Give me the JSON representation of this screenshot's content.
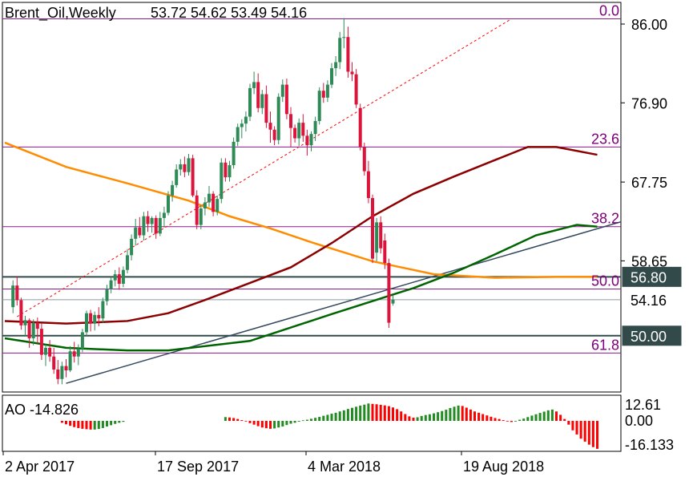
{
  "header": {
    "symbol": "Brent_Oil,Weekly",
    "ohlc": "53.72 54.62 53.49 54.16"
  },
  "indicator": {
    "label": "AO -14.826"
  },
  "chart_data": [
    {
      "type": "candlestick",
      "title": "Brent_Oil,Weekly",
      "y_axis_ticks": [
        "86.00",
        "76.90",
        "67.75",
        "58.65"
      ],
      "ylim": [
        43.5,
        88.5
      ],
      "x_axis_ticks": [
        "2 Apr 2017",
        "17 Sep 2017",
        "4 Mar 2018",
        "19 Aug 2018"
      ],
      "price_labels": [
        {
          "value": 56.8,
          "text": "56.80",
          "bg": "#324a4a"
        },
        {
          "value": 54.16,
          "text": "54.16",
          "bg": "#ffffff"
        },
        {
          "value": 50.0,
          "text": "50.00",
          "bg": "#324a4a"
        }
      ],
      "fib_levels": [
        {
          "label": "0.0",
          "value": 86.6
        },
        {
          "label": "23.6",
          "value": 71.8
        },
        {
          "label": "38.2",
          "value": 62.6
        },
        {
          "label": "50.0",
          "value": 55.4
        },
        {
          "label": "61.8",
          "value": 48.0
        }
      ],
      "horizontal_lines": [
        56.8,
        50.0
      ],
      "last_price": 54.16,
      "candles": [
        [
          53.3,
          56.4,
          52.6,
          55.8
        ],
        [
          55.8,
          56.8,
          53.5,
          54.1
        ],
        [
          54.1,
          54.4,
          50.7,
          51.2
        ],
        [
          51.2,
          52.3,
          49.9,
          51.8
        ],
        [
          51.8,
          52.0,
          48.6,
          49.7
        ],
        [
          49.7,
          51.9,
          48.9,
          51.5
        ],
        [
          51.5,
          52.1,
          49.1,
          50.8
        ],
        [
          50.8,
          51.4,
          47.2,
          47.8
        ],
        [
          47.8,
          49.0,
          46.5,
          48.6
        ],
        [
          48.6,
          49.5,
          47.0,
          47.6
        ],
        [
          47.6,
          48.6,
          45.6,
          46.1
        ],
        [
          46.1,
          47.2,
          44.4,
          45.0
        ],
        [
          45.0,
          47.0,
          44.4,
          46.5
        ],
        [
          46.5,
          47.3,
          45.2,
          46.0
        ],
        [
          46.0,
          48.8,
          45.8,
          48.2
        ],
        [
          48.2,
          49.3,
          46.9,
          47.6
        ],
        [
          47.6,
          49.0,
          46.6,
          48.5
        ],
        [
          48.5,
          50.8,
          48.1,
          50.4
        ],
        [
          50.4,
          52.9,
          50.0,
          52.6
        ],
        [
          52.6,
          53.0,
          50.5,
          51.4
        ],
        [
          51.4,
          52.8,
          50.6,
          52.4
        ],
        [
          52.4,
          53.3,
          51.1,
          52.0
        ],
        [
          52.0,
          54.4,
          51.5,
          54.0
        ],
        [
          54.0,
          55.9,
          53.5,
          55.4
        ],
        [
          55.4,
          56.8,
          54.9,
          56.4
        ],
        [
          56.4,
          57.6,
          55.7,
          57.1
        ],
        [
          57.1,
          57.9,
          55.3,
          56.0
        ],
        [
          56.0,
          58.0,
          55.6,
          57.6
        ],
        [
          57.6,
          60.0,
          57.2,
          59.3
        ],
        [
          59.3,
          61.7,
          58.7,
          61.2
        ],
        [
          61.2,
          63.5,
          60.4,
          62.5
        ],
        [
          62.5,
          63.7,
          61.3,
          61.6
        ],
        [
          61.6,
          64.3,
          61.0,
          63.8
        ],
        [
          63.8,
          64.4,
          62.0,
          62.9
        ],
        [
          62.9,
          63.8,
          61.9,
          63.6
        ],
        [
          63.6,
          63.9,
          61.2,
          61.8
        ],
        [
          61.8,
          64.3,
          61.5,
          63.6
        ],
        [
          63.6,
          64.9,
          62.5,
          64.2
        ],
        [
          64.2,
          66.7,
          63.9,
          66.2
        ],
        [
          66.2,
          67.9,
          65.5,
          67.4
        ],
        [
          67.4,
          69.8,
          67.1,
          69.2
        ],
        [
          69.2,
          70.4,
          68.5,
          69.8
        ],
        [
          69.8,
          70.7,
          68.3,
          68.9
        ],
        [
          68.9,
          71.0,
          68.5,
          70.5
        ],
        [
          70.5,
          70.9,
          66.0,
          66.2
        ],
        [
          66.2,
          66.8,
          62.3,
          62.8
        ],
        [
          62.8,
          65.1,
          62.3,
          64.7
        ],
        [
          64.7,
          66.0,
          63.9,
          65.4
        ],
        [
          65.4,
          67.3,
          64.9,
          66.4
        ],
        [
          66.4,
          66.7,
          63.8,
          64.3
        ],
        [
          64.3,
          66.2,
          63.9,
          65.8
        ],
        [
          65.8,
          70.5,
          65.3,
          70.0
        ],
        [
          70.0,
          70.5,
          67.8,
          68.3
        ],
        [
          68.3,
          70.2,
          67.8,
          69.7
        ],
        [
          69.7,
          72.9,
          69.3,
          72.4
        ],
        [
          72.4,
          74.5,
          71.9,
          74.1
        ],
        [
          74.1,
          75.0,
          72.8,
          74.5
        ],
        [
          74.5,
          75.9,
          73.6,
          75.3
        ],
        [
          75.3,
          79.1,
          74.8,
          78.6
        ],
        [
          78.6,
          80.5,
          77.9,
          79.3
        ],
        [
          79.3,
          80.3,
          75.8,
          76.3
        ],
        [
          76.3,
          78.4,
          75.6,
          77.9
        ],
        [
          77.9,
          78.9,
          74.0,
          74.6
        ],
        [
          74.6,
          75.9,
          72.3,
          73.8
        ],
        [
          73.8,
          74.2,
          72.0,
          72.6
        ],
        [
          72.6,
          78.0,
          72.1,
          77.6
        ],
        [
          77.6,
          79.6,
          77.0,
          79.0
        ],
        [
          79.0,
          79.7,
          75.0,
          75.6
        ],
        [
          75.6,
          76.4,
          71.8,
          74.0
        ],
        [
          74.0,
          74.4,
          72.3,
          72.8
        ],
        [
          72.8,
          75.1,
          71.9,
          74.6
        ],
        [
          74.6,
          75.6,
          72.4,
          73.1
        ],
        [
          73.1,
          73.8,
          70.8,
          72.0
        ],
        [
          72.0,
          73.6,
          71.3,
          73.3
        ],
        [
          73.3,
          75.3,
          72.5,
          74.8
        ],
        [
          74.8,
          78.7,
          74.4,
          78.3
        ],
        [
          78.3,
          79.2,
          76.9,
          77.5
        ],
        [
          77.5,
          79.5,
          77.0,
          79.0
        ],
        [
          79.0,
          81.5,
          78.6,
          80.9
        ],
        [
          80.9,
          82.3,
          80.0,
          81.6
        ],
        [
          81.6,
          85.1,
          80.8,
          84.4
        ],
        [
          84.4,
          86.7,
          83.2,
          84.5
        ],
        [
          84.5,
          85.7,
          79.8,
          80.5
        ],
        [
          80.5,
          81.6,
          79.4,
          80.2
        ],
        [
          80.2,
          80.8,
          76.3,
          76.7
        ],
        [
          76.3,
          76.8,
          71.4,
          71.8
        ],
        [
          71.8,
          72.3,
          68.5,
          69.0
        ],
        [
          69.0,
          70.2,
          65.3,
          65.9
        ],
        [
          65.9,
          66.3,
          58.4,
          58.9
        ],
        [
          59.6,
          63.6,
          58.6,
          63.1
        ],
        [
          63.1,
          63.8,
          59.5,
          60.1
        ],
        [
          61.0,
          61.8,
          57.7,
          58.4
        ],
        [
          58.4,
          58.9,
          50.9,
          51.5
        ],
        [
          53.72,
          54.62,
          53.49,
          54.16
        ]
      ],
      "moving_averages": [
        {
          "color": "#ff8c00",
          "values": [
            [
              0,
              72.3
            ],
            [
              15,
              69.5
            ],
            [
              30,
              67.6
            ],
            [
              45,
              65.6
            ],
            [
              55,
              63.8
            ],
            [
              65,
              62.4
            ],
            [
              75,
              60.8
            ],
            [
              90,
              58.6
            ],
            [
              105,
              57.1
            ],
            [
              120,
              56.7
            ],
            [
              135,
              56.8
            ],
            [
              145,
              56.8
            ]
          ]
        },
        {
          "color": "#8b0000",
          "values": [
            [
              0,
              51.7
            ],
            [
              15,
              51.4
            ],
            [
              30,
              51.7
            ],
            [
              40,
              52.6
            ],
            [
              50,
              54.3
            ],
            [
              60,
              56.1
            ],
            [
              70,
              57.9
            ],
            [
              80,
              60.7
            ],
            [
              90,
              63.8
            ],
            [
              100,
              66.4
            ],
            [
              110,
              68.4
            ],
            [
              120,
              70.3
            ],
            [
              128,
              71.8
            ],
            [
              135,
              71.8
            ],
            [
              145,
              70.9
            ]
          ]
        },
        {
          "color": "#006400",
          "values": [
            [
              0,
              49.7
            ],
            [
              15,
              48.6
            ],
            [
              30,
              48.3
            ],
            [
              40,
              48.3
            ],
            [
              60,
              49.4
            ],
            [
              80,
              52.5
            ],
            [
              100,
              55.5
            ],
            [
              110,
              57.3
            ],
            [
              120,
              59.4
            ],
            [
              130,
              61.6
            ],
            [
              140,
              62.8
            ],
            [
              145,
              62.6
            ]
          ]
        }
      ],
      "trendlines": [
        {
          "style": "solid",
          "color": "#34495e",
          "from": [
            15,
            44.5
          ],
          "to": [
            154,
            63.6
          ]
        },
        {
          "style": "dashed",
          "color": "#ff0000",
          "from": [
            3,
            52.2
          ],
          "to": [
            124,
            86.6
          ]
        }
      ]
    },
    {
      "type": "bar",
      "title": "AO -14.826",
      "y_axis_ticks": [
        "12.61",
        "0.00",
        "-16.133"
      ],
      "ylim": [
        -16.133,
        12.61
      ],
      "values": [
        2.0,
        1.8,
        1.5,
        1.0,
        0.4,
        -0.3,
        -1.2,
        -2.0,
        -2.8,
        -3.5,
        -3.9,
        -4.2,
        -4.0,
        -3.5,
        -3.0,
        -2.2,
        -1.5,
        -1.0,
        -0.4,
        0.3,
        0.6,
        1.1,
        1.6,
        2.1,
        2.7,
        3.2,
        3.8,
        4.3,
        5.0,
        5.6,
        6.3,
        6.9,
        7.5,
        8.1,
        8.6,
        9.2,
        9.0,
        8.8,
        8.5,
        8.2,
        7.8,
        7.1,
        6.2,
        5.0,
        3.6,
        2.4,
        1.7,
        1.9,
        2.6,
        3.1,
        3.5,
        4.0,
        4.6,
        5.2,
        5.9,
        6.8,
        7.5,
        8.1,
        7.9,
        7.0,
        6.0,
        5.0,
        4.3,
        3.6,
        2.9,
        2.2,
        1.5,
        1.0,
        0.4,
        -0.2,
        -0.6,
        -0.2,
        0.6,
        1.2,
        2.0,
        2.8,
        3.5,
        4.2,
        4.9,
        5.6,
        6.0,
        5.0,
        3.2,
        1.0,
        -2.0,
        -5.0,
        -7.2,
        -9.4,
        -11.0,
        -12.6,
        -13.9,
        -14.8
      ]
    }
  ]
}
